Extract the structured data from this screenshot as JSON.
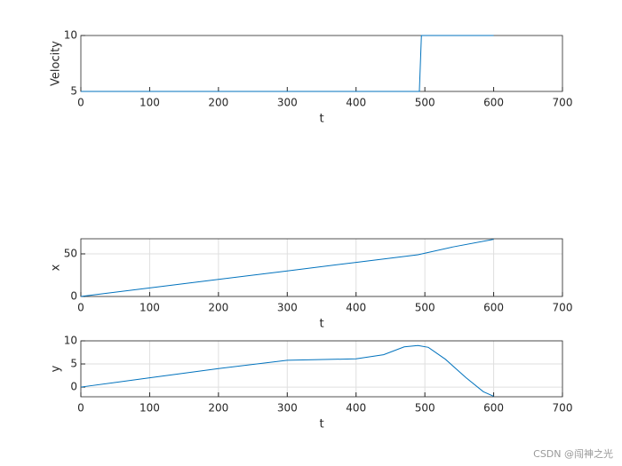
{
  "chart_data": [
    {
      "type": "line",
      "y_label": "Velocity",
      "x_label": "t",
      "xlim": [
        0,
        700
      ],
      "ylim": [
        5,
        10
      ],
      "xticks": [
        0,
        100,
        200,
        300,
        400,
        500,
        600,
        700
      ],
      "yticks": [
        5,
        10
      ],
      "grid": false,
      "x": [
        0,
        492,
        495,
        600
      ],
      "series": [
        {
          "color": "#0072bd",
          "values": [
            5,
            5,
            10,
            10
          ]
        }
      ]
    },
    {
      "type": "line",
      "y_label": "x",
      "x_label": "t",
      "xlim": [
        0,
        700
      ],
      "ylim": [
        0,
        67.7
      ],
      "xticks": [
        0,
        100,
        200,
        300,
        400,
        500,
        600,
        700
      ],
      "yticks": [
        0,
        50
      ],
      "grid": true,
      "x": [
        0,
        100,
        200,
        300,
        400,
        490,
        540,
        600
      ],
      "series": [
        {
          "color": "#0072bd",
          "values": [
            0,
            10,
            20,
            30,
            40,
            49,
            58,
            67
          ]
        }
      ]
    },
    {
      "type": "line",
      "y_label": "y",
      "x_label": "t",
      "xlim": [
        0,
        700
      ],
      "ylim": [
        -2.1,
        10
      ],
      "xticks": [
        0,
        100,
        200,
        300,
        400,
        500,
        600,
        700
      ],
      "yticks": [
        0,
        5,
        10
      ],
      "grid": true,
      "x": [
        0,
        100,
        200,
        300,
        400,
        440,
        470,
        490,
        505,
        530,
        560,
        585,
        600
      ],
      "series": [
        {
          "color": "#0072bd",
          "values": [
            0,
            2,
            4,
            5.8,
            6.1,
            7,
            8.7,
            9,
            8.6,
            6,
            2,
            -1,
            -2
          ]
        }
      ]
    }
  ],
  "watermark": "CSDN @闯神之光"
}
